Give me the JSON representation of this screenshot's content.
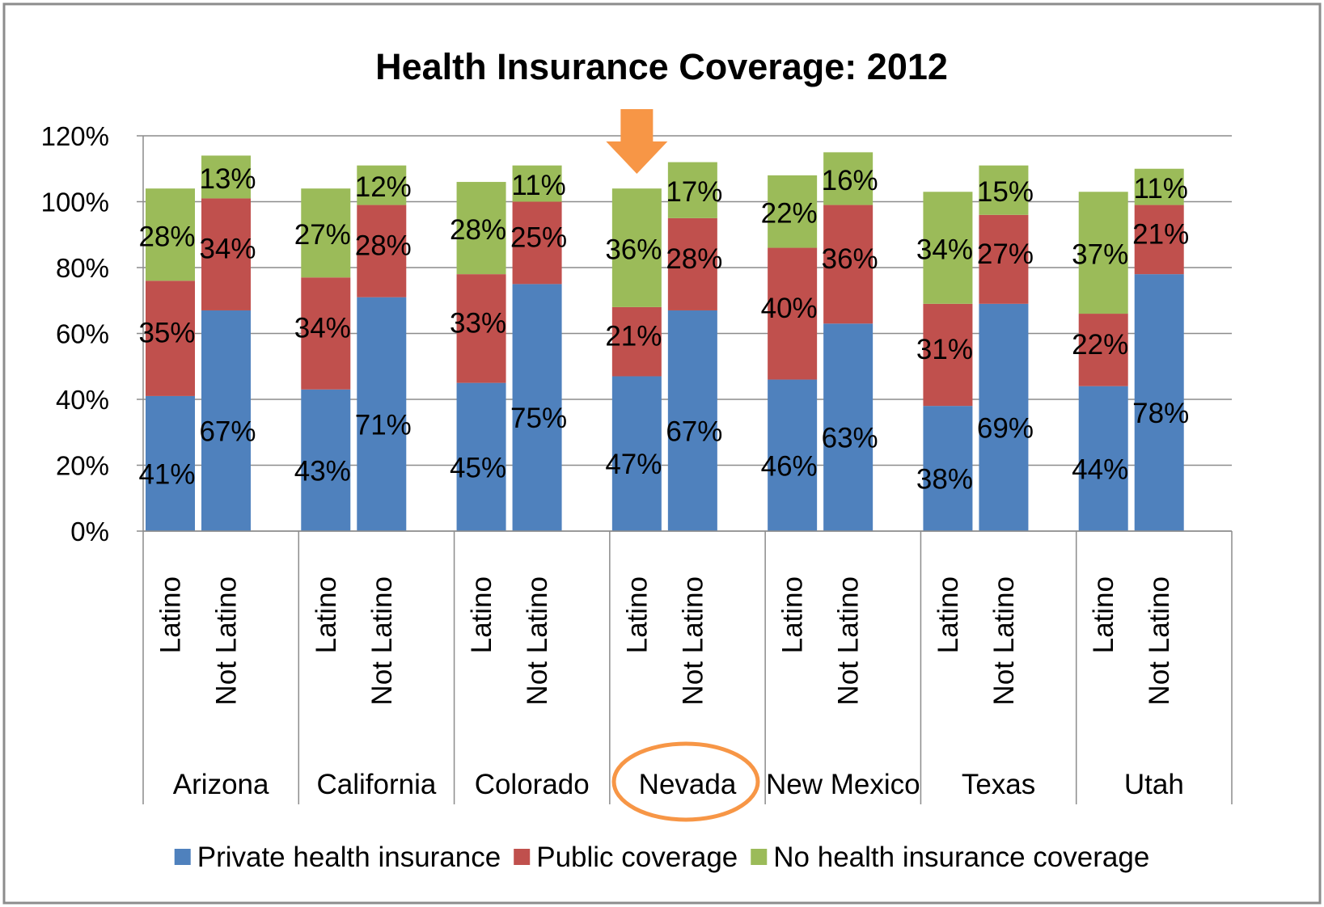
{
  "chart_data": {
    "type": "bar",
    "stacked": true,
    "title": "Health Insurance Coverage: 2012",
    "xlabel": "",
    "ylabel": "",
    "ylim": [
      0,
      120
    ],
    "yticks": [
      "0%",
      "20%",
      "40%",
      "60%",
      "80%",
      "100%",
      "120%"
    ],
    "grid": true,
    "legend_position": "bottom",
    "states": [
      "Arizona",
      "California",
      "Colorado",
      "Nevada",
      "New Mexico",
      "Texas",
      "Utah"
    ],
    "groups": [
      "Latino",
      "Not Latino"
    ],
    "categories": [
      "Arizona Latino",
      "Arizona Not Latino",
      "California Latino",
      "California Not Latino",
      "Colorado Latino",
      "Colorado Not Latino",
      "Nevada Latino",
      "Nevada Not Latino",
      "New Mexico Latino",
      "New Mexico Not Latino",
      "Texas Latino",
      "Texas Not Latino",
      "Utah Latino",
      "Utah Not Latino"
    ],
    "series": [
      {
        "name": "Private health insurance",
        "color": "#4F81BD",
        "values": [
          41,
          67,
          43,
          71,
          45,
          75,
          47,
          67,
          46,
          63,
          38,
          69,
          44,
          78
        ],
        "labels": [
          "41%",
          "67%",
          "43%",
          "71%",
          "45%",
          "75%",
          "47%",
          "67%",
          "46%",
          "63%",
          "38%",
          "69%",
          "44%",
          "78%"
        ]
      },
      {
        "name": "Public coverage",
        "color": "#C0504D",
        "values": [
          35,
          34,
          34,
          28,
          33,
          25,
          21,
          28,
          40,
          36,
          31,
          27,
          22,
          21
        ],
        "labels": [
          "35%",
          "34%",
          "34%",
          "28%",
          "33%",
          "25%",
          "21%",
          "28%",
          "40%",
          "36%",
          "31%",
          "27%",
          "22%",
          "21%"
        ]
      },
      {
        "name": "No health insurance coverage",
        "color": "#9BBB59",
        "values": [
          28,
          13,
          27,
          12,
          28,
          11,
          36,
          17,
          22,
          16,
          34,
          15,
          37,
          11
        ],
        "labels": [
          "28%",
          "13%",
          "27%",
          "12%",
          "28%",
          "11%",
          "36%",
          "17%",
          "22%",
          "16%",
          "34%",
          "15%",
          "37%",
          "11%"
        ]
      }
    ],
    "highlight": {
      "state": "Nevada",
      "arrow_color": "#F79646",
      "circle_color": "#F79646"
    }
  }
}
